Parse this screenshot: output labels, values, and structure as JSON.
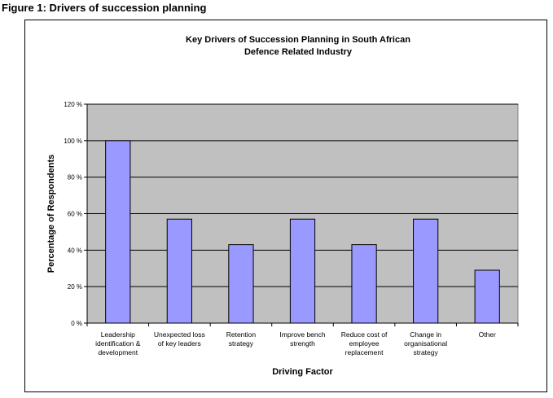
{
  "figure": {
    "caption": "Figure 1: Drivers of succession planning"
  },
  "chart_data": {
    "type": "bar",
    "title_lines": [
      "Key Drivers of Succession Planning in South African",
      "Defence Related Industry"
    ],
    "xlabel": "Driving Factor",
    "ylabel": "Percentage of Respondents",
    "categories": [
      [
        "Leadership",
        "identification &",
        "development"
      ],
      [
        "Unexpected loss",
        "of key leaders"
      ],
      [
        "Retention",
        "strategy"
      ],
      [
        "Improve bench",
        "strength"
      ],
      [
        "Reduce cost of",
        "employee",
        "replacement"
      ],
      [
        "Change in",
        "organisational",
        "strategy"
      ],
      [
        "Other"
      ]
    ],
    "values": [
      100,
      57,
      43,
      57,
      43,
      57,
      29
    ],
    "ylim": [
      0,
      120
    ],
    "yticks": [
      0,
      20,
      40,
      60,
      80,
      100,
      120
    ],
    "ytick_labels": [
      "0 %",
      "20 %",
      "40 %",
      "60 %",
      "80 %",
      "100 %",
      "120 %"
    ],
    "grid": true,
    "colors": {
      "bar": "#9999ff",
      "plot_bg": "#c0c0c0",
      "bar_edge": "#000000"
    }
  }
}
